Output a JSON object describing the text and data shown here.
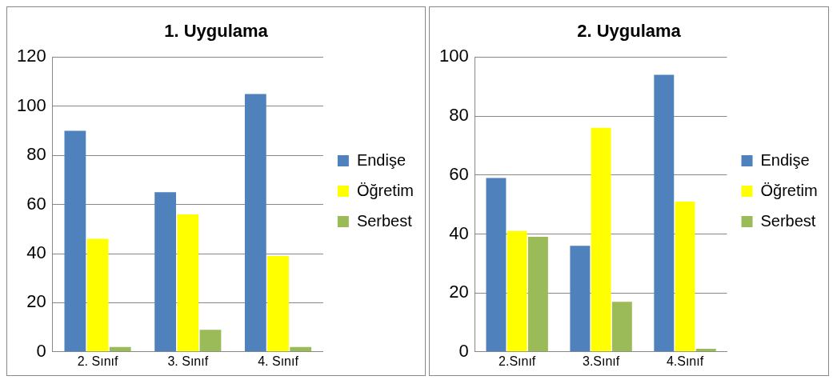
{
  "chart_data": [
    {
      "type": "bar",
      "title": "1. Uygulama",
      "categories": [
        "2. Sınıf",
        "3. Sınıf",
        "4. Sınıf"
      ],
      "series": [
        {
          "name": "Endişe",
          "color": "#4f81bd",
          "values": [
            90,
            65,
            105
          ]
        },
        {
          "name": "Öğretim",
          "color": "#ffff00",
          "values": [
            46,
            56,
            39
          ]
        },
        {
          "name": "Serbest",
          "color": "#9bbb59",
          "values": [
            2,
            9,
            2
          ]
        }
      ],
      "ylim": [
        0,
        120
      ],
      "yticks": [
        0,
        20,
        40,
        60,
        80,
        100,
        120
      ],
      "grid": "y",
      "legend": "right"
    },
    {
      "type": "bar",
      "title": "2. Uygulama",
      "categories": [
        "2.Sınıf",
        "3.Sınıf",
        "4.Sınıf"
      ],
      "series": [
        {
          "name": "Endişe",
          "color": "#4f81bd",
          "values": [
            59,
            36,
            94
          ]
        },
        {
          "name": "Öğretim",
          "color": "#ffff00",
          "values": [
            41,
            76,
            51
          ]
        },
        {
          "name": "Serbest",
          "color": "#9bbb59",
          "values": [
            39,
            17,
            1
          ]
        }
      ],
      "ylim": [
        0,
        100
      ],
      "yticks": [
        0,
        20,
        40,
        60,
        80,
        100
      ],
      "grid": "y",
      "legend": "right"
    }
  ]
}
